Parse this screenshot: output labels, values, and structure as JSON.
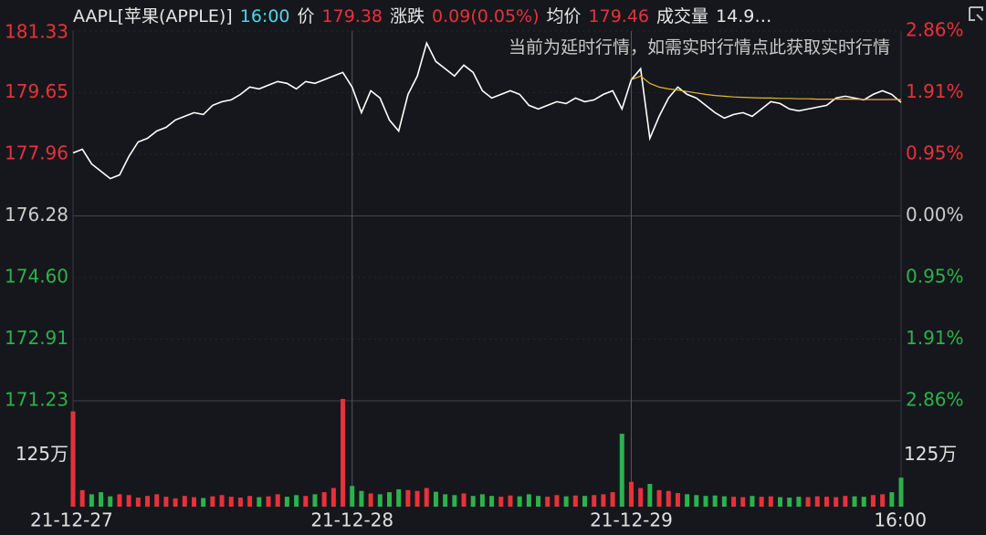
{
  "quote": {
    "symbol": "AAPL[苹果(APPLE)]",
    "time": "16:00",
    "price_label": "价",
    "price": "179.38",
    "change_label": "涨跌",
    "change": "0.09(0.05%)",
    "avg_label": "均价",
    "avg": "179.46",
    "volume_label": "成交量",
    "volume": "14.9…"
  },
  "notice": "当前为延时行情，如需实时行情点此获取实时行情",
  "chart_data": {
    "type": "line",
    "categories": [
      "21-12-27",
      null,
      null,
      null,
      null,
      null,
      null,
      null,
      null,
      null,
      null,
      null,
      null,
      null,
      null,
      null,
      null,
      null,
      null,
      null,
      null,
      null,
      null,
      null,
      null,
      null,
      null,
      null,
      null,
      null,
      "21-12-28",
      null,
      null,
      null,
      null,
      null,
      null,
      null,
      null,
      null,
      null,
      null,
      null,
      null,
      null,
      null,
      null,
      null,
      null,
      null,
      null,
      null,
      null,
      null,
      null,
      null,
      null,
      null,
      null,
      null,
      "21-12-29",
      null,
      null,
      null,
      null,
      null,
      null,
      null,
      null,
      null,
      null,
      null,
      null,
      null,
      null,
      null,
      null,
      null,
      null,
      null,
      null,
      null,
      null,
      null,
      null,
      null,
      null,
      null,
      null,
      "16:00"
    ],
    "series": [
      {
        "color": "#ffffff",
        "values": [
          178.0,
          178.1,
          177.7,
          177.5,
          177.3,
          177.4,
          177.9,
          178.3,
          178.4,
          178.6,
          178.7,
          178.9,
          179.0,
          179.1,
          179.05,
          179.3,
          179.4,
          179.45,
          179.6,
          179.8,
          179.75,
          179.85,
          179.95,
          179.9,
          179.75,
          179.95,
          179.9,
          180.0,
          180.1,
          180.2,
          179.8,
          179.1,
          179.7,
          179.5,
          178.9,
          178.6,
          179.6,
          180.1,
          181.0,
          180.5,
          180.3,
          180.1,
          180.4,
          180.2,
          179.7,
          179.5,
          179.6,
          179.7,
          179.6,
          179.3,
          179.2,
          179.3,
          179.4,
          179.35,
          179.5,
          179.4,
          179.45,
          179.6,
          179.7,
          179.2,
          180.0,
          180.3,
          178.4,
          179.0,
          179.5,
          179.8,
          179.6,
          179.5,
          179.3,
          179.1,
          178.95,
          179.05,
          179.1,
          179.0,
          179.2,
          179.4,
          179.35,
          179.2,
          179.15,
          179.2,
          179.25,
          179.3,
          179.5,
          179.55,
          179.5,
          179.45,
          179.6,
          179.7,
          179.6,
          179.38
        ]
      },
      {
        "color": "#e5b82a",
        "values": [
          null,
          null,
          null,
          null,
          null,
          null,
          null,
          null,
          null,
          null,
          null,
          null,
          null,
          null,
          null,
          null,
          null,
          null,
          null,
          null,
          null,
          null,
          null,
          null,
          null,
          null,
          null,
          null,
          null,
          null,
          null,
          null,
          null,
          null,
          null,
          null,
          null,
          null,
          null,
          null,
          null,
          null,
          null,
          null,
          null,
          null,
          null,
          null,
          null,
          null,
          null,
          null,
          null,
          null,
          null,
          null,
          null,
          null,
          null,
          null,
          180.0,
          180.1,
          179.9,
          179.8,
          179.75,
          179.72,
          179.68,
          179.64,
          179.6,
          179.57,
          179.55,
          179.53,
          179.52,
          179.51,
          179.5,
          179.5,
          179.49,
          179.49,
          179.48,
          179.48,
          179.47,
          179.47,
          179.47,
          179.47,
          179.47,
          179.46,
          179.46,
          179.46,
          179.46,
          179.46
        ]
      }
    ],
    "ylim": [
      171.23,
      181.33
    ],
    "yticks": [
      181.33,
      179.65,
      177.96,
      176.28,
      174.6,
      172.91,
      171.23
    ],
    "y2lim": [
      -2.86,
      2.86
    ],
    "y2ticks": [
      {
        "value": 2.86,
        "label": "2.86%"
      },
      {
        "value": 1.91,
        "label": "1.91%"
      },
      {
        "value": 0.95,
        "label": "0.95%"
      },
      {
        "value": 0,
        "label": "0.00%"
      },
      {
        "value": -0.95,
        "label": "0.95%"
      },
      {
        "value": -1.91,
        "label": "1.91%"
      },
      {
        "value": -2.86,
        "label": "2.86%"
      }
    ],
    "yticks_labels": [
      "181.33",
      "179.65",
      "177.96",
      "176.28",
      "174.60",
      "172.91",
      "171.23"
    ],
    "up_color": "#e8313b",
    "down_color": "#2bb24c",
    "flat_color": "#cccccc",
    "volume": {
      "ylim": [
        0,
        2600000
      ],
      "yticks": [
        {
          "value": 1250000,
          "label": "125万"
        }
      ],
      "values": [
        2300000,
        400000,
        300000,
        350000,
        250000,
        300000,
        280000,
        220000,
        260000,
        300000,
        240000,
        200000,
        260000,
        230000,
        210000,
        250000,
        280000,
        240000,
        220000,
        260000,
        230000,
        250000,
        300000,
        240000,
        280000,
        260000,
        300000,
        350000,
        450000,
        2600000,
        500000,
        380000,
        320000,
        300000,
        350000,
        420000,
        400000,
        380000,
        450000,
        360000,
        300000,
        280000,
        320000,
        260000,
        300000,
        260000,
        240000,
        270000,
        250000,
        300000,
        260000,
        240000,
        280000,
        250000,
        270000,
        260000,
        280000,
        300000,
        350000,
        1760000,
        600000,
        450000,
        550000,
        400000,
        380000,
        330000,
        300000,
        280000,
        260000,
        270000,
        250000,
        240000,
        230000,
        260000,
        240000,
        250000,
        230000,
        220000,
        240000,
        230000,
        250000,
        240000,
        230000,
        260000,
        250000,
        240000,
        280000,
        300000,
        350000,
        700000
      ]
    }
  }
}
